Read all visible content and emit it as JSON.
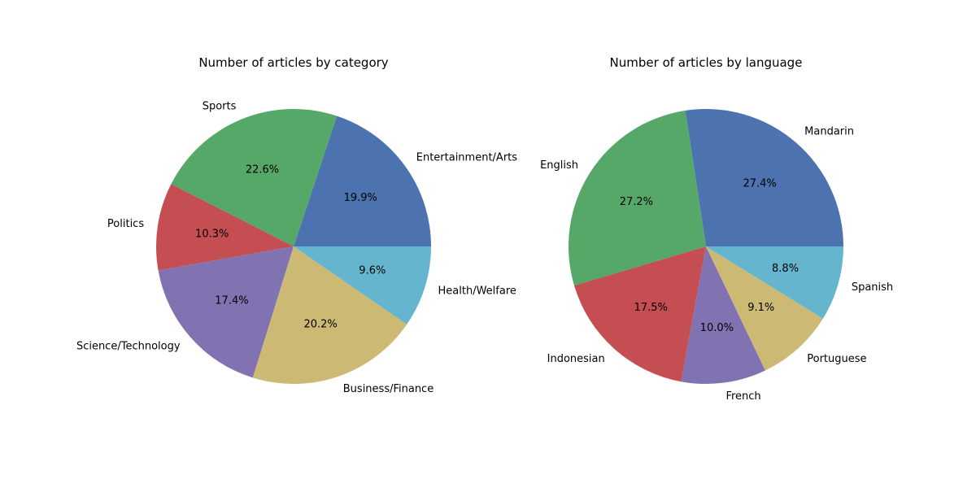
{
  "chart_data": [
    {
      "type": "pie",
      "title": "Number of articles by category",
      "start_angle_deg": 0,
      "direction": "counterclockwise",
      "slices": [
        {
          "label": "Entertainment/Arts",
          "percent": 19.9,
          "pct_text": "19.9%",
          "color": "#4C72B0"
        },
        {
          "label": "Sports",
          "percent": 22.6,
          "pct_text": "22.6%",
          "color": "#55A868"
        },
        {
          "label": "Politics",
          "percent": 10.3,
          "pct_text": "10.3%",
          "color": "#C44E52"
        },
        {
          "label": "Science/Technology",
          "percent": 17.4,
          "pct_text": "17.4%",
          "color": "#8172B2"
        },
        {
          "label": "Business/Finance",
          "percent": 20.2,
          "pct_text": "20.2%",
          "color": "#CCB974"
        },
        {
          "label": "Health/Welfare",
          "percent": 9.6,
          "pct_text": "9.6%",
          "color": "#64B5CD"
        }
      ]
    },
    {
      "type": "pie",
      "title": "Number of articles by language",
      "start_angle_deg": 0,
      "direction": "counterclockwise",
      "slices": [
        {
          "label": "Mandarin",
          "percent": 27.4,
          "pct_text": "27.4%",
          "color": "#4C72B0"
        },
        {
          "label": "English",
          "percent": 27.2,
          "pct_text": "27.2%",
          "color": "#55A868"
        },
        {
          "label": "Indonesian",
          "percent": 17.5,
          "pct_text": "17.5%",
          "color": "#C44E52"
        },
        {
          "label": "French",
          "percent": 10.0,
          "pct_text": "10.0%",
          "color": "#8172B2"
        },
        {
          "label": "Portuguese",
          "percent": 9.1,
          "pct_text": "9.1%",
          "color": "#CCB974"
        },
        {
          "label": "Spanish",
          "percent": 8.8,
          "pct_text": "8.8%",
          "color": "#64B5CD"
        }
      ]
    }
  ]
}
